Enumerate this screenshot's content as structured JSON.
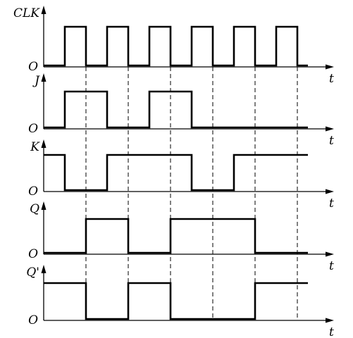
{
  "time_label": "t",
  "origin_label": "O",
  "clock_period": 2,
  "signals": [
    {
      "name": "CLK",
      "label": "CLK",
      "levels": [
        0,
        1,
        0,
        1,
        0,
        1,
        0,
        1,
        0,
        1,
        0,
        1,
        0
      ]
    },
    {
      "name": "J",
      "label": "J",
      "levels": [
        0,
        1,
        1,
        0,
        0,
        1,
        1,
        0,
        0,
        0,
        0,
        0,
        0
      ]
    },
    {
      "name": "K",
      "label": "K",
      "levels": [
        1,
        0,
        0,
        1,
        1,
        1,
        1,
        0,
        0,
        1,
        1,
        1,
        1
      ]
    },
    {
      "name": "Q",
      "label": "Q",
      "levels": [
        0,
        0,
        1,
        1,
        0,
        0,
        1,
        1,
        1,
        1,
        0,
        0,
        0
      ]
    },
    {
      "name": "Q-prime",
      "label": "Q'",
      "levels": [
        1,
        1,
        0,
        0,
        1,
        1,
        0,
        0,
        0,
        0,
        1,
        1,
        1
      ]
    }
  ],
  "falling_edges": [
    1,
    2,
    3,
    4,
    5,
    6
  ]
}
